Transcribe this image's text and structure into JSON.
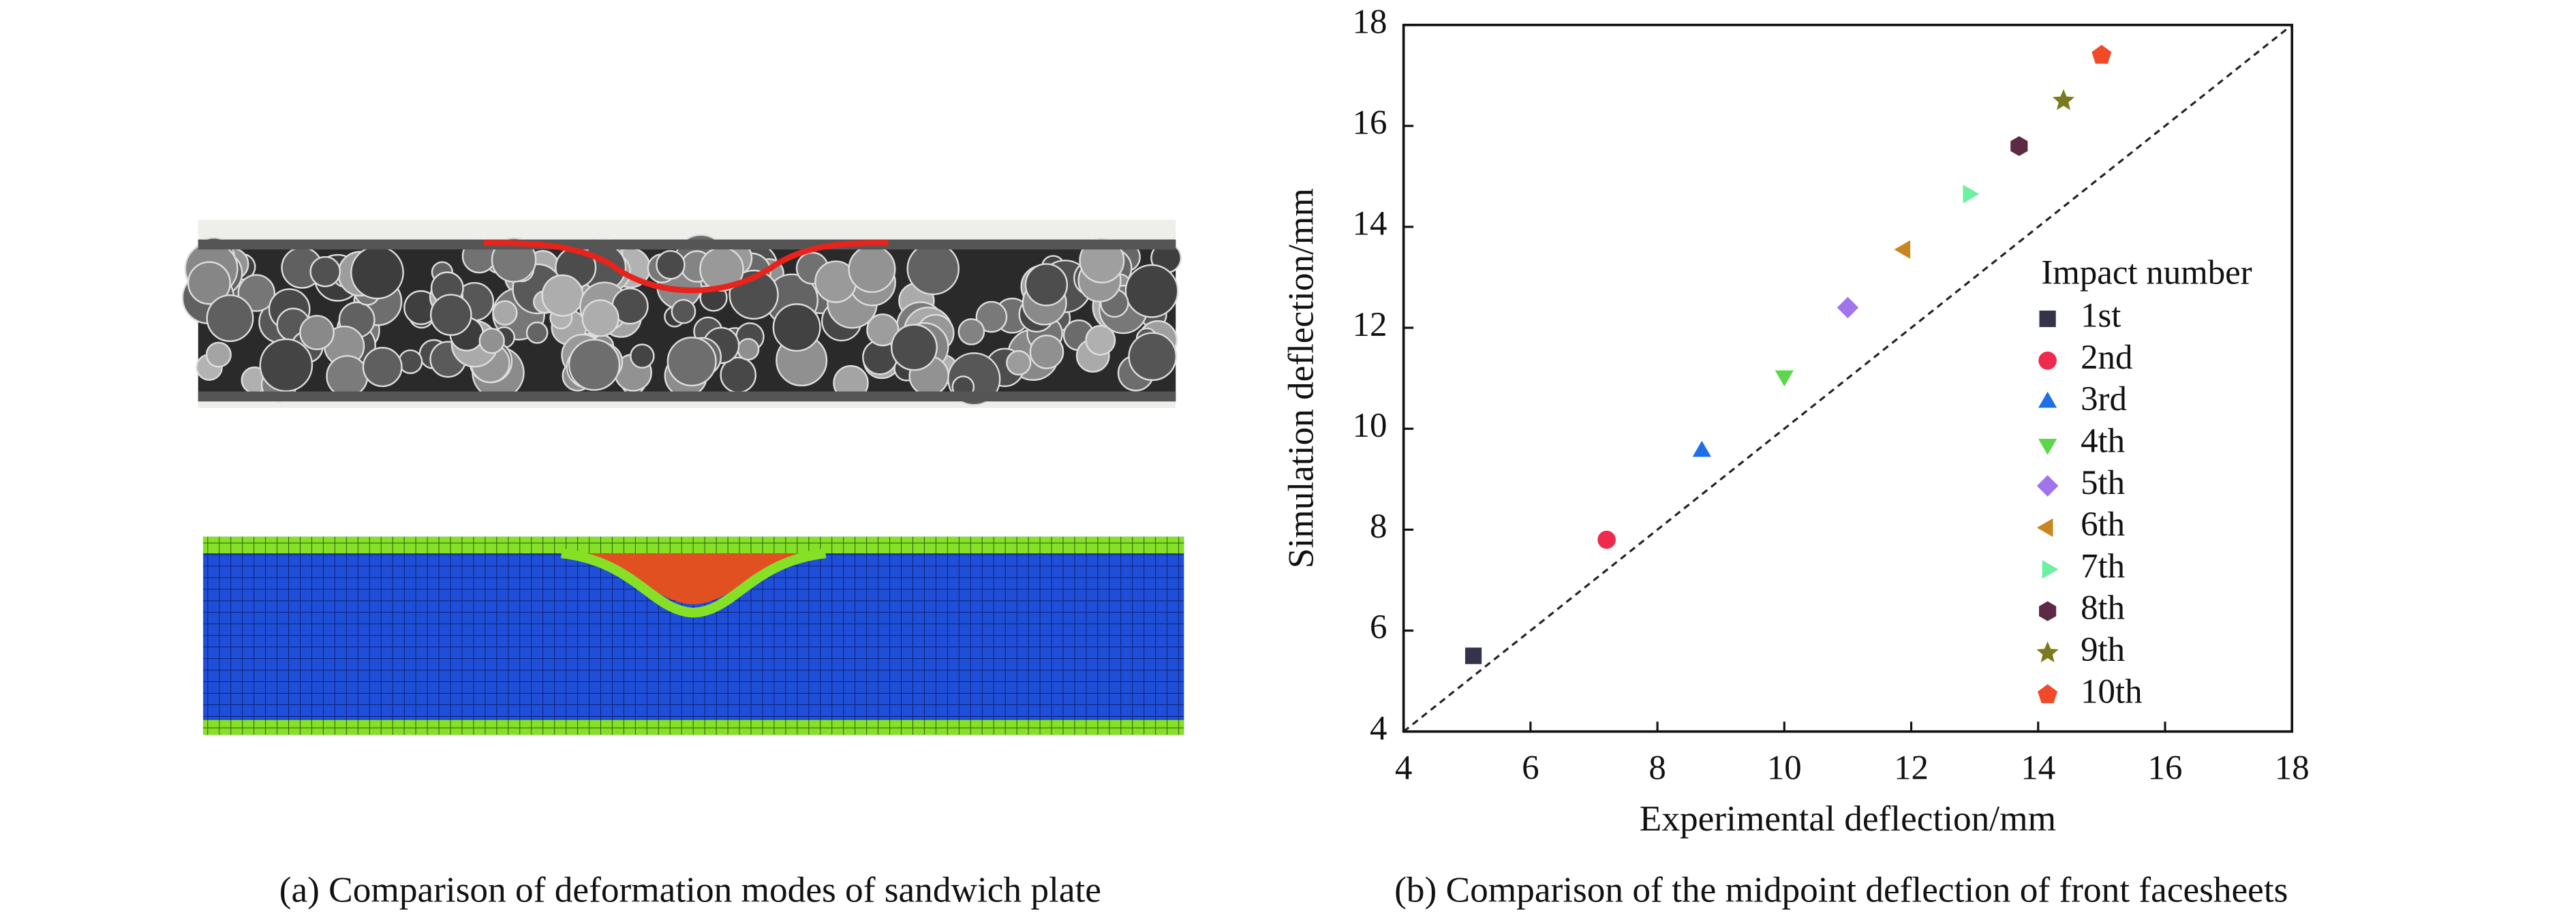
{
  "chart_data": {
    "type": "scatter",
    "x_label": "Experimental deflection/mm",
    "y_label": "Simulation deflection/mm",
    "legend_title": "Impact number",
    "xlim": [
      4,
      18
    ],
    "xticks": [
      4,
      6,
      8,
      10,
      12,
      14,
      16,
      18
    ],
    "ylim": [
      4,
      18
    ],
    "yticks": [
      4,
      6,
      8,
      10,
      12,
      14,
      16,
      18
    ],
    "series": [
      {
        "name": "1st",
        "color": "#33334a",
        "marker": "square",
        "x": [
          5.1
        ],
        "values": [
          5.5
        ]
      },
      {
        "name": "2nd",
        "color": "#ee2a4e",
        "marker": "circle",
        "x": [
          7.2
        ],
        "values": [
          7.8
        ]
      },
      {
        "name": "3rd",
        "color": "#1e6fe6",
        "marker": "triangle-up",
        "x": [
          8.7
        ],
        "values": [
          9.55
        ]
      },
      {
        "name": "4th",
        "color": "#5cd64a",
        "marker": "triangle-down",
        "x": [
          10
        ],
        "values": [
          11.05
        ]
      },
      {
        "name": "5th",
        "color": "#a274ec",
        "marker": "diamond",
        "x": [
          11
        ],
        "values": [
          12.4
        ]
      },
      {
        "name": "6th",
        "color": "#c9861f",
        "marker": "triangle-left",
        "x": [
          11.9
        ],
        "values": [
          13.55
        ]
      },
      {
        "name": "7th",
        "color": "#6cf0a2",
        "marker": "triangle-right",
        "x": [
          12.9
        ],
        "values": [
          14.65
        ]
      },
      {
        "name": "8th",
        "color": "#5c2a44",
        "marker": "hexagon",
        "x": [
          13.7
        ],
        "values": [
          15.6
        ]
      },
      {
        "name": "9th",
        "color": "#7b7b1e",
        "marker": "star",
        "x": [
          14.4
        ],
        "values": [
          16.5
        ]
      },
      {
        "name": "10th",
        "color": "#f24a28",
        "marker": "pentagon",
        "x": [
          15
        ],
        "values": [
          17.4
        ]
      }
    ]
  },
  "captions": [
    "(a) Comparison of deformation modes of sandwich plate",
    "(b) Comparison of the midpoint deflection of front facesheets"
  ]
}
